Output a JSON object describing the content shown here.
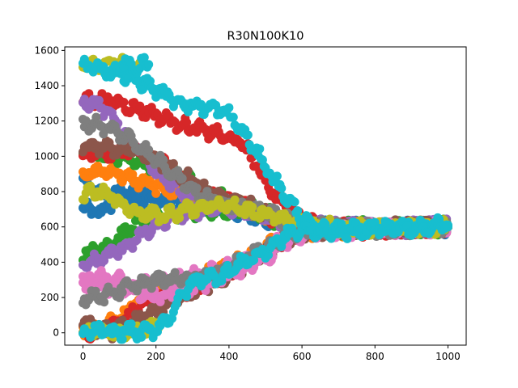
{
  "chart_data": {
    "type": "scatter",
    "title": "R30N100K10",
    "xlabel": "",
    "ylabel": "",
    "xlim": [
      -50,
      1050
    ],
    "ylim": [
      -70,
      1620
    ],
    "xticks": [
      0,
      200,
      400,
      600,
      800,
      1000
    ],
    "yticks": [
      0,
      200,
      400,
      600,
      800,
      1000,
      1200,
      1400,
      1600
    ],
    "grid": false,
    "legend": "none",
    "colors": [
      "#1f77b4",
      "#ff7f0e",
      "#2ca02c",
      "#d62728",
      "#9467bd",
      "#8c564b",
      "#e377c2",
      "#7f7f7f",
      "#bcbd22",
      "#17becf"
    ],
    "series": [
      {
        "color": "#1f77b4",
        "points": [
          [
            0,
            700
          ],
          [
            50,
            680
          ],
          [
            100,
            780
          ],
          [
            150,
            820
          ],
          [
            200,
            770
          ],
          [
            260,
            700
          ],
          [
            300,
            720
          ],
          [
            380,
            730
          ],
          [
            460,
            700
          ],
          [
            520,
            650
          ],
          [
            600,
            610
          ],
          [
            700,
            590
          ],
          [
            850,
            590
          ],
          [
            1000,
            600
          ]
        ]
      },
      {
        "color": "#1f77b4",
        "points": [
          [
            0,
            840
          ],
          [
            60,
            800
          ],
          [
            120,
            760
          ],
          [
            200,
            740
          ],
          [
            280,
            730
          ],
          [
            360,
            720
          ],
          [
            440,
            680
          ],
          [
            520,
            630
          ],
          [
            620,
            600
          ],
          [
            800,
            595
          ],
          [
            1000,
            600
          ]
        ]
      },
      {
        "color": "#ff7f0e",
        "points": [
          [
            0,
            900
          ],
          [
            40,
            910
          ],
          [
            80,
            920
          ],
          [
            120,
            880
          ],
          [
            200,
            830
          ],
          [
            260,
            790
          ],
          [
            320,
            760
          ],
          [
            400,
            740
          ],
          [
            480,
            680
          ],
          [
            560,
            620
          ],
          [
            660,
            590
          ],
          [
            850,
            595
          ],
          [
            1000,
            605
          ]
        ]
      },
      {
        "color": "#ff7f0e",
        "points": [
          [
            0,
            10
          ],
          [
            40,
            20
          ],
          [
            80,
            60
          ],
          [
            120,
            130
          ],
          [
            160,
            200
          ],
          [
            220,
            250
          ],
          [
            280,
            290
          ],
          [
            340,
            330
          ],
          [
            420,
            400
          ],
          [
            480,
            480
          ],
          [
            560,
            560
          ],
          [
            640,
            580
          ],
          [
            800,
            590
          ],
          [
            1000,
            600
          ]
        ]
      },
      {
        "color": "#2ca02c",
        "points": [
          [
            0,
            1040
          ],
          [
            60,
            1010
          ],
          [
            120,
            990
          ],
          [
            200,
            950
          ],
          [
            260,
            900
          ],
          [
            300,
            850
          ],
          [
            360,
            780
          ],
          [
            440,
            720
          ],
          [
            520,
            660
          ],
          [
            600,
            610
          ],
          [
            700,
            590
          ],
          [
            850,
            595
          ],
          [
            1000,
            600
          ]
        ]
      },
      {
        "color": "#2ca02c",
        "points": [
          [
            0,
            440
          ],
          [
            50,
            480
          ],
          [
            100,
            540
          ],
          [
            140,
            610
          ],
          [
            200,
            650
          ],
          [
            260,
            670
          ],
          [
            320,
            690
          ],
          [
            400,
            700
          ],
          [
            480,
            670
          ],
          [
            560,
            630
          ],
          [
            660,
            595
          ],
          [
            850,
            595
          ],
          [
            1000,
            600
          ]
        ]
      },
      {
        "color": "#d62728",
        "points": [
          [
            0,
            1320
          ],
          [
            60,
            1320
          ],
          [
            120,
            1290
          ],
          [
            180,
            1250
          ],
          [
            240,
            1200
          ],
          [
            300,
            1160
          ],
          [
            360,
            1130
          ],
          [
            400,
            1100
          ],
          [
            440,
            1070
          ],
          [
            480,
            930
          ],
          [
            520,
            800
          ],
          [
            560,
            700
          ],
          [
            600,
            640
          ],
          [
            660,
            590
          ],
          [
            850,
            590
          ],
          [
            1000,
            600
          ]
        ]
      },
      {
        "color": "#d62728",
        "points": [
          [
            0,
            1010
          ],
          [
            50,
            1020
          ],
          [
            100,
            1030
          ],
          [
            160,
            1020
          ],
          [
            220,
            960
          ],
          [
            260,
            870
          ],
          [
            300,
            810
          ],
          [
            360,
            760
          ],
          [
            440,
            720
          ],
          [
            520,
            650
          ],
          [
            600,
            610
          ],
          [
            700,
            590
          ],
          [
            850,
            590
          ],
          [
            1000,
            600
          ]
        ]
      },
      {
        "color": "#d62728",
        "points": [
          [
            0,
            0
          ],
          [
            40,
            10
          ],
          [
            80,
            30
          ],
          [
            120,
            80
          ],
          [
            160,
            150
          ],
          [
            200,
            200
          ],
          [
            260,
            230
          ],
          [
            320,
            270
          ],
          [
            400,
            340
          ],
          [
            480,
            440
          ],
          [
            560,
            540
          ],
          [
            640,
            580
          ],
          [
            850,
            590
          ],
          [
            1000,
            600
          ]
        ]
      },
      {
        "color": "#9467bd",
        "points": [
          [
            0,
            1320
          ],
          [
            40,
            1290
          ],
          [
            80,
            1230
          ],
          [
            120,
            1100
          ],
          [
            160,
            1020
          ],
          [
            200,
            920
          ],
          [
            240,
            850
          ],
          [
            280,
            790
          ],
          [
            340,
            750
          ],
          [
            400,
            720
          ],
          [
            460,
            690
          ],
          [
            520,
            650
          ],
          [
            600,
            610
          ],
          [
            700,
            590
          ],
          [
            850,
            595
          ],
          [
            1000,
            600
          ]
        ]
      },
      {
        "color": "#9467bd",
        "points": [
          [
            0,
            380
          ],
          [
            50,
            420
          ],
          [
            100,
            470
          ],
          [
            160,
            550
          ],
          [
            220,
            630
          ],
          [
            280,
            680
          ],
          [
            340,
            700
          ],
          [
            400,
            710
          ],
          [
            480,
            680
          ],
          [
            560,
            630
          ],
          [
            660,
            595
          ],
          [
            850,
            595
          ],
          [
            1000,
            600
          ]
        ]
      },
      {
        "color": "#8c564b",
        "points": [
          [
            0,
            1060
          ],
          [
            60,
            1050
          ],
          [
            120,
            1040
          ],
          [
            180,
            1000
          ],
          [
            240,
            930
          ],
          [
            300,
            860
          ],
          [
            360,
            790
          ],
          [
            440,
            730
          ],
          [
            520,
            660
          ],
          [
            600,
            610
          ],
          [
            700,
            590
          ],
          [
            1000,
            600
          ]
        ]
      },
      {
        "color": "#8c564b",
        "points": [
          [
            0,
            60
          ],
          [
            40,
            20
          ],
          [
            80,
            10
          ],
          [
            140,
            60
          ],
          [
            200,
            130
          ],
          [
            260,
            200
          ],
          [
            320,
            250
          ],
          [
            400,
            320
          ],
          [
            480,
            420
          ],
          [
            540,
            510
          ],
          [
            600,
            570
          ],
          [
            700,
            585
          ],
          [
            1000,
            600
          ]
        ]
      },
      {
        "color": "#e377c2",
        "points": [
          [
            0,
            300
          ],
          [
            50,
            310
          ],
          [
            100,
            300
          ],
          [
            140,
            240
          ],
          [
            180,
            200
          ],
          [
            240,
            220
          ],
          [
            300,
            260
          ],
          [
            360,
            300
          ],
          [
            440,
            360
          ],
          [
            500,
            420
          ],
          [
            560,
            520
          ],
          [
            620,
            570
          ],
          [
            800,
            590
          ],
          [
            1000,
            600
          ]
        ]
      },
      {
        "color": "#e377c2",
        "points": [
          [
            0,
            240
          ],
          [
            50,
            260
          ],
          [
            120,
            250
          ],
          [
            180,
            280
          ],
          [
            240,
            300
          ],
          [
            300,
            320
          ],
          [
            380,
            360
          ],
          [
            440,
            400
          ],
          [
            500,
            460
          ],
          [
            560,
            540
          ],
          [
            640,
            580
          ],
          [
            1000,
            600
          ]
        ]
      },
      {
        "color": "#7f7f7f",
        "points": [
          [
            0,
            1190
          ],
          [
            40,
            1180
          ],
          [
            80,
            1150
          ],
          [
            120,
            1110
          ],
          [
            160,
            1050
          ],
          [
            200,
            980
          ],
          [
            240,
            920
          ],
          [
            280,
            850
          ],
          [
            320,
            780
          ],
          [
            380,
            740
          ],
          [
            440,
            720
          ],
          [
            500,
            680
          ],
          [
            560,
            640
          ],
          [
            620,
            600
          ],
          [
            700,
            590
          ],
          [
            1000,
            600
          ]
        ]
      },
      {
        "color": "#7f7f7f",
        "points": [
          [
            0,
            200
          ],
          [
            50,
            210
          ],
          [
            100,
            240
          ],
          [
            160,
            280
          ],
          [
            220,
            300
          ],
          [
            280,
            310
          ],
          [
            340,
            320
          ],
          [
            400,
            380
          ],
          [
            460,
            440
          ],
          [
            520,
            500
          ],
          [
            560,
            560
          ],
          [
            620,
            580
          ],
          [
            1000,
            600
          ]
        ]
      },
      {
        "color": "#bcbd22",
        "points": [
          [
            0,
            1510
          ],
          [
            40,
            1520
          ],
          [
            80,
            1530
          ],
          [
            120,
            1520
          ],
          [
            160,
            1520
          ]
        ]
      },
      {
        "color": "#bcbd22",
        "points": [
          [
            0,
            780
          ],
          [
            40,
            810
          ],
          [
            80,
            770
          ],
          [
            120,
            700
          ],
          [
            160,
            680
          ],
          [
            220,
            660
          ],
          [
            280,
            700
          ],
          [
            340,
            720
          ],
          [
            380,
            730
          ],
          [
            440,
            700
          ],
          [
            500,
            670
          ],
          [
            560,
            640
          ],
          [
            620,
            610
          ],
          [
            700,
            595
          ],
          [
            1000,
            600
          ]
        ]
      },
      {
        "color": "#bcbd22",
        "points": [
          [
            0,
            0
          ],
          [
            40,
            10
          ],
          [
            80,
            5
          ],
          [
            120,
            0
          ],
          [
            160,
            10
          ],
          [
            200,
            40
          ],
          [
            220,
            80
          ]
        ]
      },
      {
        "color": "#17becf",
        "points": [
          [
            0,
            1520
          ],
          [
            40,
            1500
          ],
          [
            80,
            1480
          ],
          [
            120,
            1460
          ],
          [
            160,
            1420
          ],
          [
            200,
            1380
          ],
          [
            240,
            1330
          ],
          [
            280,
            1300
          ],
          [
            320,
            1280
          ],
          [
            360,
            1270
          ],
          [
            400,
            1240
          ],
          [
            440,
            1130
          ],
          [
            480,
            1010
          ],
          [
            520,
            880
          ],
          [
            560,
            760
          ],
          [
            600,
            650
          ],
          [
            640,
            580
          ],
          [
            700,
            570
          ],
          [
            800,
            590
          ],
          [
            1000,
            610
          ]
        ]
      },
      {
        "color": "#17becf",
        "points": [
          [
            0,
            0
          ],
          [
            40,
            10
          ],
          [
            80,
            0
          ],
          [
            120,
            10
          ],
          [
            160,
            0
          ],
          [
            200,
            20
          ],
          [
            240,
            100
          ],
          [
            280,
            240
          ],
          [
            320,
            310
          ],
          [
            380,
            320
          ],
          [
            440,
            400
          ],
          [
            500,
            460
          ],
          [
            560,
            560
          ],
          [
            620,
            580
          ],
          [
            1000,
            600
          ]
        ]
      },
      {
        "color": "#17becf",
        "points": [
          [
            100,
            1520
          ],
          [
            140,
            1510
          ],
          [
            180,
            1520
          ]
        ]
      }
    ]
  }
}
